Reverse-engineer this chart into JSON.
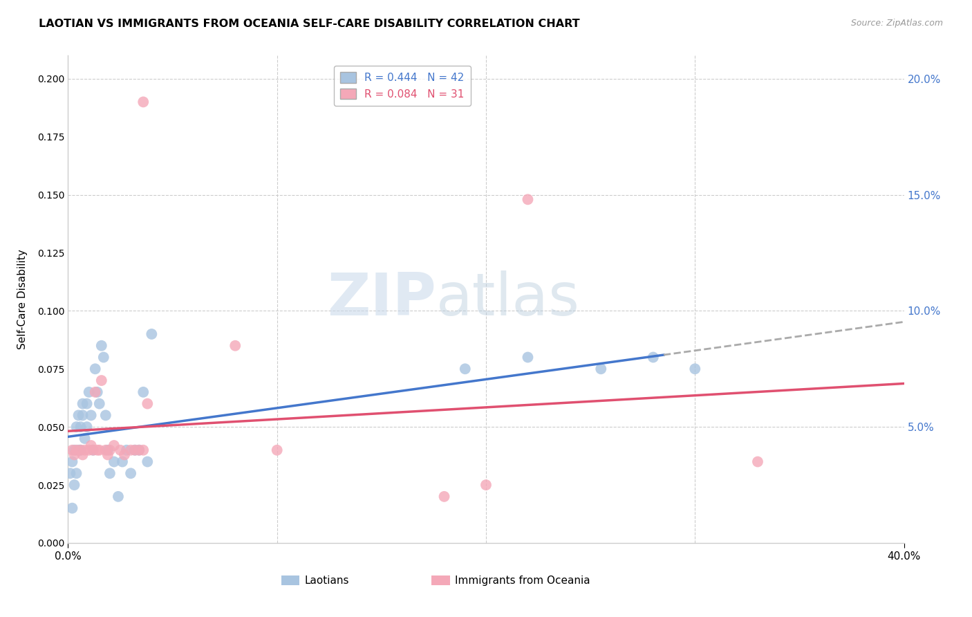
{
  "title": "LAOTIAN VS IMMIGRANTS FROM OCEANIA SELF-CARE DISABILITY CORRELATION CHART",
  "source": "Source: ZipAtlas.com",
  "ylabel": "Self-Care Disability",
  "xlim": [
    0.0,
    0.4
  ],
  "ylim": [
    0.0,
    0.21
  ],
  "yticks_right": [
    0.05,
    0.1,
    0.15,
    0.2
  ],
  "ytick_labels_right": [
    "5.0%",
    "10.0%",
    "15.0%",
    "20.0%"
  ],
  "grid_color": "#cccccc",
  "background_color": "#ffffff",
  "laotian_color": "#a8c4e0",
  "oceania_color": "#f4a8b8",
  "laotian_R": 0.444,
  "laotian_N": 42,
  "oceania_R": 0.084,
  "oceania_N": 31,
  "trend_blue_color": "#4477cc",
  "trend_pink_color": "#e05070",
  "trend_dashed_color": "#aaaaaa",
  "laotian_x": [
    0.001,
    0.002,
    0.002,
    0.003,
    0.003,
    0.004,
    0.004,
    0.005,
    0.005,
    0.006,
    0.006,
    0.007,
    0.007,
    0.008,
    0.009,
    0.009,
    0.01,
    0.011,
    0.012,
    0.013,
    0.014,
    0.015,
    0.016,
    0.017,
    0.018,
    0.019,
    0.02,
    0.022,
    0.024,
    0.026,
    0.028,
    0.03,
    0.032,
    0.034,
    0.036,
    0.038,
    0.04,
    0.19,
    0.22,
    0.255,
    0.28,
    0.3
  ],
  "laotian_y": [
    0.03,
    0.015,
    0.035,
    0.025,
    0.04,
    0.03,
    0.05,
    0.04,
    0.055,
    0.04,
    0.05,
    0.055,
    0.06,
    0.045,
    0.05,
    0.06,
    0.065,
    0.055,
    0.04,
    0.075,
    0.065,
    0.06,
    0.085,
    0.08,
    0.055,
    0.04,
    0.03,
    0.035,
    0.02,
    0.035,
    0.04,
    0.03,
    0.04,
    0.04,
    0.065,
    0.035,
    0.09,
    0.075,
    0.08,
    0.075,
    0.08,
    0.075
  ],
  "oceania_x": [
    0.002,
    0.003,
    0.004,
    0.006,
    0.007,
    0.008,
    0.01,
    0.011,
    0.012,
    0.013,
    0.014,
    0.015,
    0.016,
    0.018,
    0.019,
    0.02,
    0.022,
    0.025,
    0.027,
    0.03,
    0.032,
    0.034,
    0.036,
    0.038,
    0.08,
    0.1,
    0.18,
    0.2,
    0.22,
    0.33,
    0.036
  ],
  "oceania_y": [
    0.04,
    0.038,
    0.04,
    0.04,
    0.038,
    0.04,
    0.04,
    0.042,
    0.04,
    0.065,
    0.04,
    0.04,
    0.07,
    0.04,
    0.038,
    0.04,
    0.042,
    0.04,
    0.038,
    0.04,
    0.04,
    0.04,
    0.04,
    0.06,
    0.085,
    0.04,
    0.02,
    0.025,
    0.148,
    0.035,
    0.19
  ]
}
